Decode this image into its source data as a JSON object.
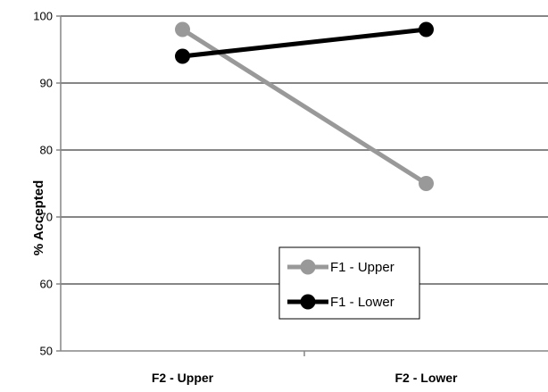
{
  "chart_data": {
    "type": "line",
    "title": "",
    "xlabel": "",
    "ylabel": "% Accepted",
    "categories": [
      "F2 - Upper",
      "F2 - Lower"
    ],
    "ylim": [
      50,
      100
    ],
    "yticks": [
      50,
      60,
      70,
      80,
      90,
      100
    ],
    "grid": "horizontal",
    "legend_position": "center-right",
    "series": [
      {
        "name": "F1 - Upper",
        "values": [
          98,
          75
        ],
        "color": "#999999"
      },
      {
        "name": "F1 - Lower",
        "values": [
          94,
          98
        ],
        "color": "#000000"
      }
    ]
  }
}
